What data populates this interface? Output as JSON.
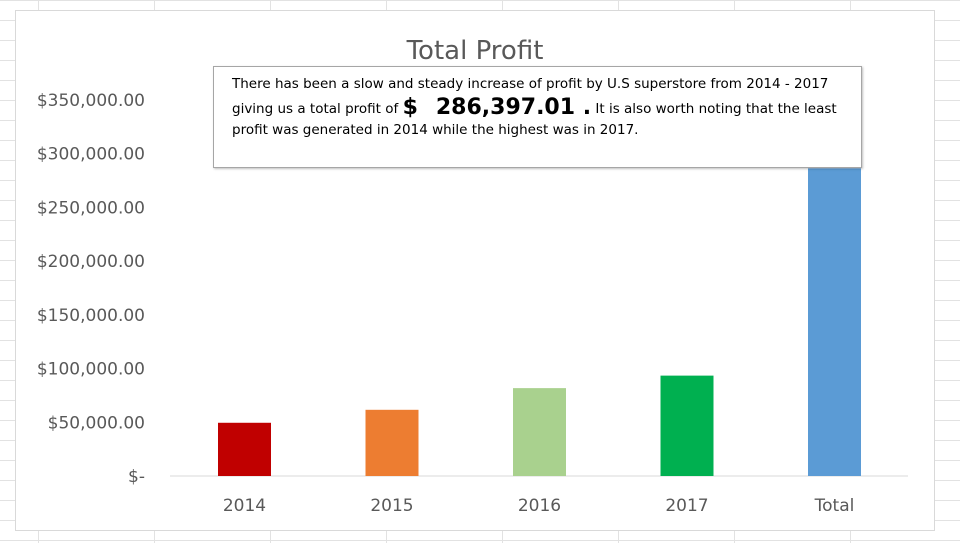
{
  "chart_data": {
    "type": "bar",
    "title": "Total Profit",
    "categories": [
      "2014",
      "2015",
      "2016",
      "2017",
      "Total"
    ],
    "values": [
      49544,
      61619,
      81795,
      93439,
      286397
    ],
    "colors": [
      "#c00000",
      "#ed7d31",
      "#a9d18e",
      "#00b050",
      "#5b9bd5"
    ],
    "ylim": [
      0,
      350000
    ],
    "yticks": [
      {
        "value": 350000,
        "label": "$350,000.00"
      },
      {
        "value": 300000,
        "label": "$300,000.00"
      },
      {
        "value": 250000,
        "label": "$250,000.00"
      },
      {
        "value": 200000,
        "label": "$200,000.00"
      },
      {
        "value": 150000,
        "label": "$150,000.00"
      },
      {
        "value": 100000,
        "label": "$100,000.00"
      },
      {
        "value": 50000,
        "label": "$50,000.00"
      },
      {
        "value": 0,
        "label": "$-"
      }
    ],
    "xlabel": "",
    "ylabel": "",
    "grid": false,
    "legend": "none"
  },
  "annotation": {
    "line1": "There has been a slow and steady increase of profit by U.S superstore from 2014 - 2017",
    "line2_prefix": "giving us a total profit of",
    "currency_symbol": "$",
    "total_value": "286,397.01 .",
    "line2_suffix": "It is also worth noting that the least",
    "line3": "profit was generated in 2014 while the highest was in 2017."
  }
}
